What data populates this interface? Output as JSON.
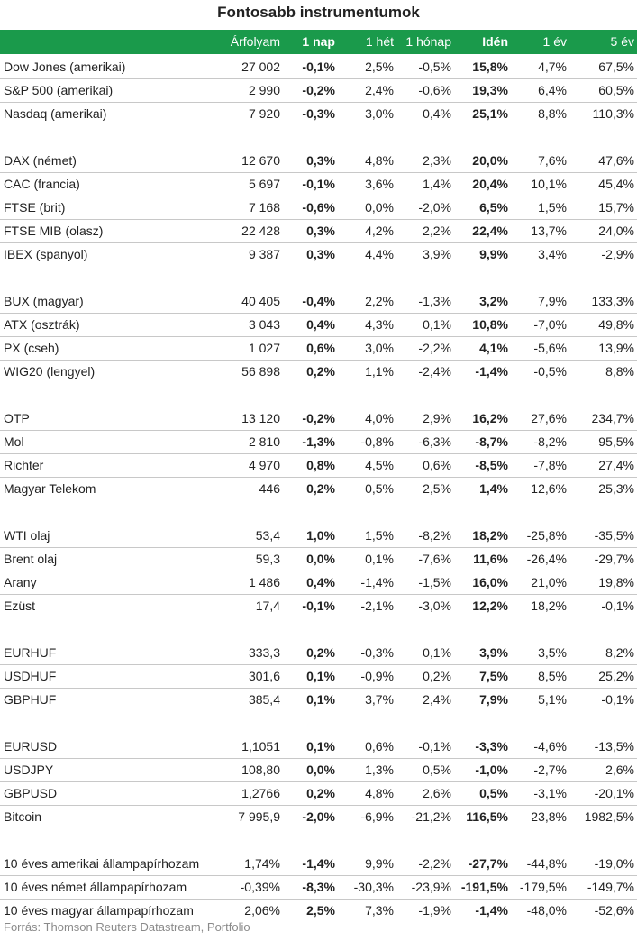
{
  "title": "Fontosabb instrumentumok",
  "headers": {
    "price": "Árfolyam",
    "day1": "1 nap",
    "week1": "1 hét",
    "month1": "1 hónap",
    "ytd": "Idén",
    "year1": "1 év",
    "year5": "5 év"
  },
  "groups": [
    {
      "rows": [
        {
          "name": "Dow Jones (amerikai)",
          "price": "27 002",
          "day1": "-0,1%",
          "week1": "2,5%",
          "month1": "-0,5%",
          "ytd": "15,8%",
          "year1": "4,7%",
          "year5": "67,5%"
        },
        {
          "name": "S&P 500 (amerikai)",
          "price": "2 990",
          "day1": "-0,2%",
          "week1": "2,4%",
          "month1": "-0,6%",
          "ytd": "19,3%",
          "year1": "6,4%",
          "year5": "60,5%"
        },
        {
          "name": "Nasdaq (amerikai)",
          "price": "7 920",
          "day1": "-0,3%",
          "week1": "3,0%",
          "month1": "0,4%",
          "ytd": "25,1%",
          "year1": "8,8%",
          "year5": "110,3%"
        }
      ]
    },
    {
      "rows": [
        {
          "name": "DAX (német)",
          "price": "12 670",
          "day1": "0,3%",
          "week1": "4,8%",
          "month1": "2,3%",
          "ytd": "20,0%",
          "year1": "7,6%",
          "year5": "47,6%"
        },
        {
          "name": "CAC (francia)",
          "price": "5 697",
          "day1": "-0,1%",
          "week1": "3,6%",
          "month1": "1,4%",
          "ytd": "20,4%",
          "year1": "10,1%",
          "year5": "45,4%"
        },
        {
          "name": "FTSE (brit)",
          "price": "7 168",
          "day1": "-0,6%",
          "week1": "0,0%",
          "month1": "-2,0%",
          "ytd": "6,5%",
          "year1": "1,5%",
          "year5": "15,7%"
        },
        {
          "name": "FTSE MIB (olasz)",
          "price": "22 428",
          "day1": "0,3%",
          "week1": "4,2%",
          "month1": "2,2%",
          "ytd": "22,4%",
          "year1": "13,7%",
          "year5": "24,0%"
        },
        {
          "name": "IBEX (spanyol)",
          "price": "9 387",
          "day1": "0,3%",
          "week1": "4,4%",
          "month1": "3,9%",
          "ytd": "9,9%",
          "year1": "3,4%",
          "year5": "-2,9%"
        }
      ]
    },
    {
      "rows": [
        {
          "name": "BUX (magyar)",
          "price": "40 405",
          "day1": "-0,4%",
          "week1": "2,2%",
          "month1": "-1,3%",
          "ytd": "3,2%",
          "year1": "7,9%",
          "year5": "133,3%"
        },
        {
          "name": "ATX (osztrák)",
          "price": "3 043",
          "day1": "0,4%",
          "week1": "4,3%",
          "month1": "0,1%",
          "ytd": "10,8%",
          "year1": "-7,0%",
          "year5": "49,8%"
        },
        {
          "name": "PX (cseh)",
          "price": "1 027",
          "day1": "0,6%",
          "week1": "3,0%",
          "month1": "-2,2%",
          "ytd": "4,1%",
          "year1": "-5,6%",
          "year5": "13,9%"
        },
        {
          "name": "WIG20 (lengyel)",
          "price": "56 898",
          "day1": "0,2%",
          "week1": "1,1%",
          "month1": "-2,4%",
          "ytd": "-1,4%",
          "year1": "-0,5%",
          "year5": "8,8%"
        }
      ]
    },
    {
      "rows": [
        {
          "name": "OTP",
          "price": "13 120",
          "day1": "-0,2%",
          "week1": "4,0%",
          "month1": "2,9%",
          "ytd": "16,2%",
          "year1": "27,6%",
          "year5": "234,7%"
        },
        {
          "name": "Mol",
          "price": "2 810",
          "day1": "-1,3%",
          "week1": "-0,8%",
          "month1": "-6,3%",
          "ytd": "-8,7%",
          "year1": "-8,2%",
          "year5": "95,5%"
        },
        {
          "name": "Richter",
          "price": "4 970",
          "day1": "0,8%",
          "week1": "4,5%",
          "month1": "0,6%",
          "ytd": "-8,5%",
          "year1": "-7,8%",
          "year5": "27,4%"
        },
        {
          "name": "Magyar Telekom",
          "price": "446",
          "day1": "0,2%",
          "week1": "0,5%",
          "month1": "2,5%",
          "ytd": "1,4%",
          "year1": "12,6%",
          "year5": "25,3%"
        }
      ]
    },
    {
      "rows": [
        {
          "name": "WTI olaj",
          "price": "53,4",
          "day1": "1,0%",
          "week1": "1,5%",
          "month1": "-8,2%",
          "ytd": "18,2%",
          "year1": "-25,8%",
          "year5": "-35,5%"
        },
        {
          "name": "Brent olaj",
          "price": "59,3",
          "day1": "0,0%",
          "week1": "0,1%",
          "month1": "-7,6%",
          "ytd": "11,6%",
          "year1": "-26,4%",
          "year5": "-29,7%"
        },
        {
          "name": "Arany",
          "price": "1 486",
          "day1": "0,4%",
          "week1": "-1,4%",
          "month1": "-1,5%",
          "ytd": "16,0%",
          "year1": "21,0%",
          "year5": "19,8%"
        },
        {
          "name": "Ezüst",
          "price": "17,4",
          "day1": "-0,1%",
          "week1": "-2,1%",
          "month1": "-3,0%",
          "ytd": "12,2%",
          "year1": "18,2%",
          "year5": "-0,1%"
        }
      ]
    },
    {
      "rows": [
        {
          "name": "EURHUF",
          "price": "333,3",
          "day1": "0,2%",
          "week1": "-0,3%",
          "month1": "0,1%",
          "ytd": "3,9%",
          "year1": "3,5%",
          "year5": "8,2%"
        },
        {
          "name": "USDHUF",
          "price": "301,6",
          "day1": "0,1%",
          "week1": "-0,9%",
          "month1": "0,2%",
          "ytd": "7,5%",
          "year1": "8,5%",
          "year5": "25,2%"
        },
        {
          "name": "GBPHUF",
          "price": "385,4",
          "day1": "0,1%",
          "week1": "3,7%",
          "month1": "2,4%",
          "ytd": "7,9%",
          "year1": "5,1%",
          "year5": "-0,1%"
        }
      ]
    },
    {
      "rows": [
        {
          "name": "EURUSD",
          "price": "1,1051",
          "day1": "0,1%",
          "week1": "0,6%",
          "month1": "-0,1%",
          "ytd": "-3,3%",
          "year1": "-4,6%",
          "year5": "-13,5%"
        },
        {
          "name": "USDJPY",
          "price": "108,80",
          "day1": "0,0%",
          "week1": "1,3%",
          "month1": "0,5%",
          "ytd": "-1,0%",
          "year1": "-2,7%",
          "year5": "2,6%"
        },
        {
          "name": "GBPUSD",
          "price": "1,2766",
          "day1": "0,2%",
          "week1": "4,8%",
          "month1": "2,6%",
          "ytd": "0,5%",
          "year1": "-3,1%",
          "year5": "-20,1%"
        },
        {
          "name": "Bitcoin",
          "price": "7 995,9",
          "day1": "-2,0%",
          "week1": "-6,9%",
          "month1": "-21,2%",
          "ytd": "116,5%",
          "year1": "23,8%",
          "year5": "1982,5%"
        }
      ]
    },
    {
      "rows": [
        {
          "name": "10 éves amerikai állampapírhozam",
          "price": "1,74%",
          "day1": "-1,4%",
          "week1": "9,9%",
          "month1": "-2,2%",
          "ytd": "-27,7%",
          "year1": "-44,8%",
          "year5": "-19,0%"
        },
        {
          "name": "10 éves német állampapírhozam",
          "price": "-0,39%",
          "day1": "-8,3%",
          "week1": "-30,3%",
          "month1": "-23,9%",
          "ytd": "-191,5%",
          "year1": "-179,5%",
          "year5": "-149,7%"
        },
        {
          "name": "10 éves magyar állampapírhozam",
          "price": "2,06%",
          "day1": "2,5%",
          "week1": "7,3%",
          "month1": "-1,9%",
          "ytd": "-1,4%",
          "year1": "-48,0%",
          "year5": "-52,6%"
        }
      ]
    }
  ],
  "footer": "Forrás: Thomson Reuters Datastream, Portfolio"
}
